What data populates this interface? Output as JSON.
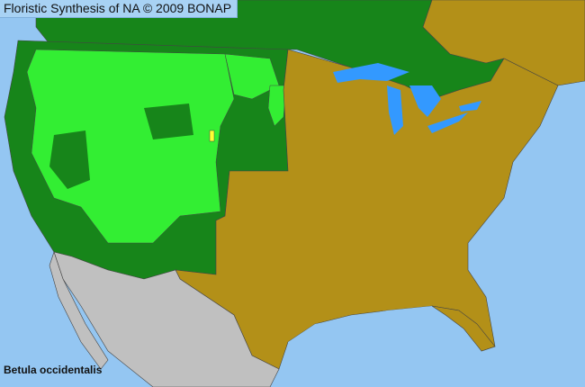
{
  "header": {
    "title": "Floristic Synthesis of NA © 2009 BONAP"
  },
  "map": {
    "species": "Betula occidentalis",
    "colors": {
      "water": "#94c6f2",
      "native_state": "#17851a",
      "present_county": "#33ee33",
      "absent_state": "#b39018",
      "rare_county": "#ffff33",
      "outside_range": "#c0c0c0",
      "border": "#555555"
    }
  }
}
